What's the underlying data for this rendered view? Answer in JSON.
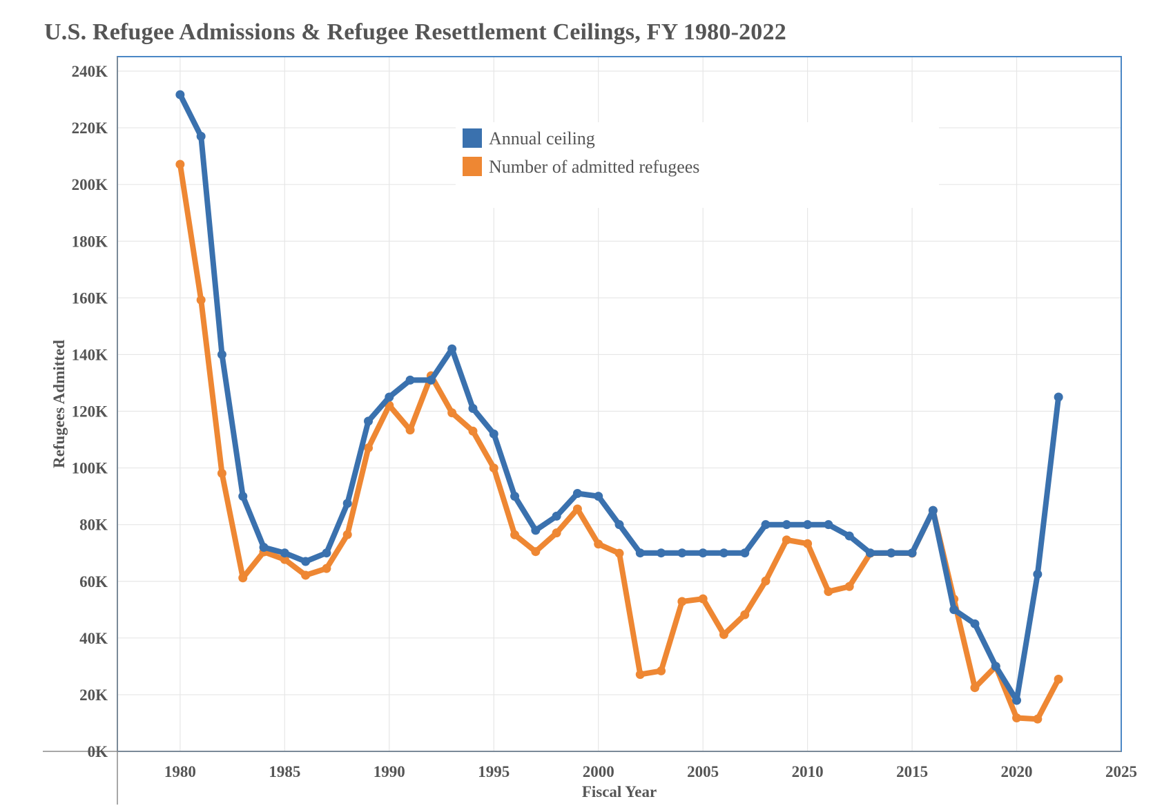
{
  "chart_data": {
    "type": "line",
    "title": "U.S. Refugee Admissions & Refugee Resettlement Ceilings, FY 1980-2022",
    "xlabel": "Fiscal Year",
    "ylabel": "Refugees Admitted",
    "xlim": [
      1977,
      2025
    ],
    "ylim": [
      0,
      240000
    ],
    "x_ticks": [
      1980,
      1985,
      1990,
      1995,
      2000,
      2005,
      2010,
      2015,
      2020,
      2025
    ],
    "y_ticks": [
      0,
      20000,
      40000,
      60000,
      80000,
      100000,
      120000,
      140000,
      160000,
      180000,
      200000,
      220000,
      240000
    ],
    "y_tick_labels": [
      "0K",
      "20K",
      "40K",
      "60K",
      "80K",
      "100K",
      "120K",
      "140K",
      "160K",
      "180K",
      "200K",
      "220K",
      "240K"
    ],
    "x_tick_labels": [
      "1980",
      "1985",
      "1990",
      "1995",
      "2000",
      "2005",
      "2010",
      "2015",
      "2020",
      "2025"
    ],
    "grid": true,
    "legend_position": "top-center",
    "x": [
      1980,
      1981,
      1982,
      1983,
      1984,
      1985,
      1986,
      1987,
      1988,
      1989,
      1990,
      1991,
      1992,
      1993,
      1994,
      1995,
      1996,
      1997,
      1998,
      1999,
      2000,
      2001,
      2002,
      2003,
      2004,
      2005,
      2006,
      2007,
      2008,
      2009,
      2010,
      2011,
      2012,
      2013,
      2014,
      2015,
      2016,
      2017,
      2018,
      2019,
      2020,
      2021,
      2022
    ],
    "series": [
      {
        "name": "Annual ceiling",
        "color": "#3a71ae",
        "values": [
          231700,
          217000,
          140000,
          90000,
          72000,
          70000,
          67000,
          70000,
          87500,
          116500,
          125000,
          131000,
          131000,
          142000,
          121000,
          112000,
          90000,
          78000,
          83000,
          91000,
          90000,
          80000,
          70000,
          70000,
          70000,
          70000,
          70000,
          70000,
          80000,
          80000,
          80000,
          80000,
          76000,
          70000,
          70000,
          70000,
          85000,
          50000,
          45000,
          30000,
          18000,
          62500,
          125000
        ]
      },
      {
        "name": "Number of admitted refugees",
        "color": "#ee8733",
        "values": [
          207116,
          159252,
          98096,
          61218,
          70393,
          67704,
          62146,
          64528,
          76483,
          107070,
          122066,
          113389,
          132531,
          119448,
          112981,
          99974,
          76403,
          70488,
          77080,
          85525,
          73147,
          69886,
          27131,
          28403,
          52873,
          53813,
          41223,
          48218,
          60107,
          74602,
          73293,
          56384,
          58179,
          69909,
          69975,
          69920,
          84988,
          53716,
          22491,
          30000,
          11814,
          11411,
          25465
        ]
      }
    ]
  }
}
